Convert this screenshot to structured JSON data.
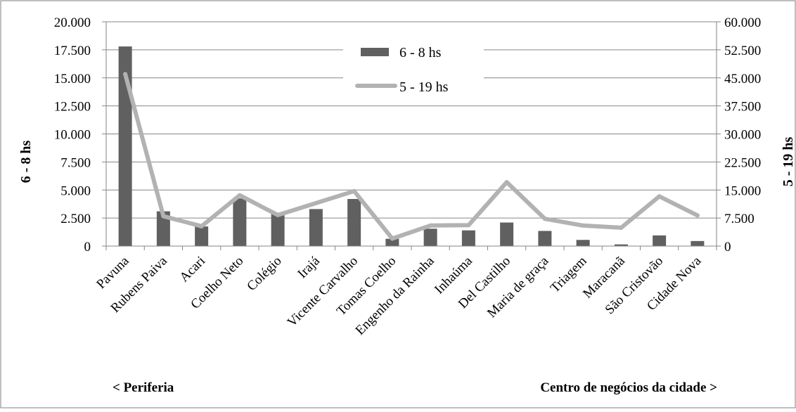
{
  "chart_data": {
    "type": "bar",
    "categories": [
      "Pavuna",
      "Rubens Paiva",
      "Acari",
      "Coelho Neto",
      "Colégio",
      "Irajá",
      "Vicente Carvalho",
      "Tomas Coelho",
      "Engenho da Rainha",
      "Inhaúma",
      "Del Castilho",
      "Maria de graça",
      "Triagem",
      "Maracanã",
      "São Cristovão",
      "Cidade Nova"
    ],
    "series": [
      {
        "name": "6 - 8 hs",
        "type": "bar",
        "axis": "left",
        "color": "#606060",
        "values": [
          17800,
          3100,
          1750,
          4250,
          2900,
          3300,
          4200,
          650,
          1550,
          1400,
          2100,
          1350,
          550,
          150,
          950,
          450
        ]
      },
      {
        "name": "5 - 19 hs",
        "type": "line",
        "axis": "right",
        "color": "#b2b2b2",
        "values": [
          46000,
          8000,
          5300,
          13600,
          8300,
          11500,
          14700,
          2000,
          5500,
          5600,
          17100,
          7300,
          5500,
          4900,
          13300,
          8200
        ]
      }
    ],
    "ylabel": "6 - 8 hs",
    "ylabel_right": "5 - 19 hs",
    "ylim": [
      0,
      20000
    ],
    "ylim_right": [
      0,
      60000
    ],
    "yticks": [
      "0",
      "2.500",
      "5.000",
      "7.500",
      "10.000",
      "12.500",
      "15.000",
      "17.500",
      "20.000"
    ],
    "yticks_right": [
      "0",
      "7.500",
      "15.000",
      "22.500",
      "30.000",
      "37.500",
      "45.000",
      "52.500",
      "60.000"
    ],
    "grid": true,
    "legend_position": "top-center",
    "notes": {
      "left": "<  Periferia",
      "right": "Centro de negócios da cidade  >"
    }
  }
}
